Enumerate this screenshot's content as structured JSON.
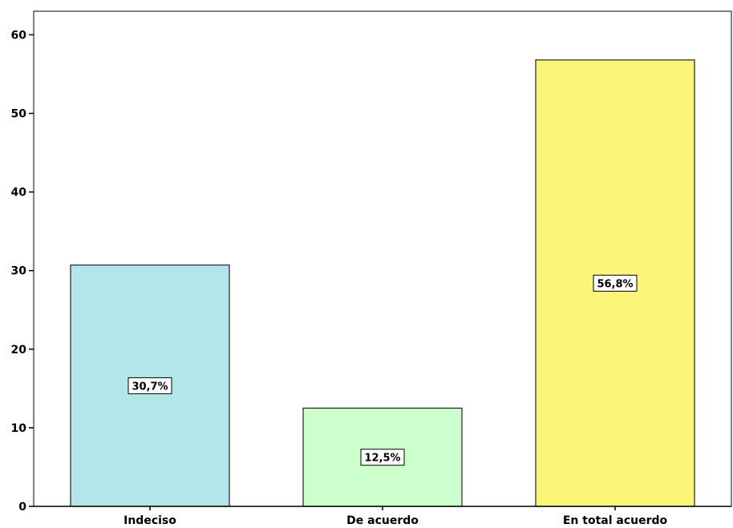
{
  "chart_data": {
    "type": "bar",
    "categories": [
      "Indeciso",
      "De acuerdo",
      "En total acuerdo"
    ],
    "values": [
      30.7,
      12.5,
      56.8
    ],
    "data_labels": [
      "30,7%",
      "12,5%",
      "56,8%"
    ],
    "colors": [
      "#b3e6e8",
      "#ccffcc",
      "#fbf57a"
    ],
    "ylim": [
      0,
      63
    ],
    "yticks": [
      0,
      10,
      20,
      30,
      40,
      50,
      60
    ],
    "grid": false,
    "title": "",
    "xlabel": "",
    "ylabel": ""
  }
}
